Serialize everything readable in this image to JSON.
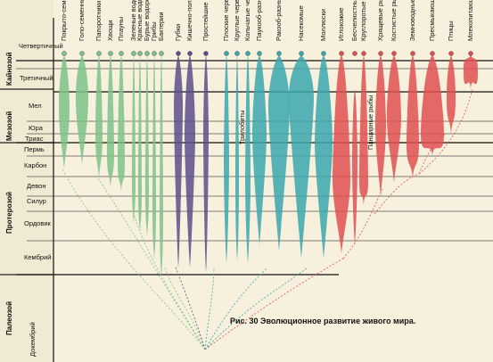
{
  "eras": [
    "Кайнозой",
    "Мезозой",
    "Протерозой",
    "Палеозой"
  ],
  "periods": [
    "Четвертичный",
    "Третичный",
    "Мел",
    "Юра",
    "Триас",
    "Пермь",
    "Карбон",
    "Девон",
    "Силур",
    "Ордовик",
    "Кембрий",
    "Докембрий"
  ],
  "groups": [
    {
      "label": "Покрыто-семенные",
      "color": "#7cc38a"
    },
    {
      "label": "Голо-семенные",
      "color": "#7cc38a"
    },
    {
      "label": "Папоротники",
      "color": "#7cc38a"
    },
    {
      "label": "Хвощи",
      "color": "#7cc38a"
    },
    {
      "label": "Плауны",
      "color": "#7cc38a"
    },
    {
      "label": "Зеленые водоросли",
      "color": "#7cc38a"
    },
    {
      "label": "Красные водоросли",
      "color": "#7cc38a"
    },
    {
      "label": "Бурые водоросли",
      "color": "#7cc38a"
    },
    {
      "label": "Грибы",
      "color": "#7cc38a"
    },
    {
      "label": "Бактерии",
      "color": "#7cc38a"
    },
    {
      "label": "Губки",
      "color": "#5a4f8a"
    },
    {
      "label": "Кишечно-полостные",
      "color": "#5a4f8a"
    },
    {
      "label": "Простейшие",
      "color": "#5a4f8a"
    },
    {
      "label": "Плоские черви",
      "color": "#3aa7ad"
    },
    {
      "label": "Круглые черви",
      "color": "#3aa7ad"
    },
    {
      "label": "Кольчатые черви",
      "color": "#3aa7ad"
    },
    {
      "label": "Паукооб-разные",
      "color": "#3aa7ad"
    },
    {
      "label": "Ракооб-разные",
      "color": "#3aa7ad"
    },
    {
      "label": "Насекомые",
      "color": "#3aa7ad"
    },
    {
      "label": "Моллюски",
      "color": "#3aa7ad"
    },
    {
      "label": "Иглокожие",
      "color": "#e05050"
    },
    {
      "label": "Бесчелюстные",
      "color": "#e05050"
    },
    {
      "label": "Круглоротые",
      "color": "#e05050"
    },
    {
      "label": "Хрящевые рыбы",
      "color": "#e05050"
    },
    {
      "label": "Костистые рыбы",
      "color": "#e05050"
    },
    {
      "label": "Земноводные",
      "color": "#e05050"
    },
    {
      "label": "Пресмыкающиеся",
      "color": "#e05050"
    },
    {
      "label": "Птицы",
      "color": "#e05050"
    },
    {
      "label": "Млекопитающие",
      "color": "#e05050"
    }
  ],
  "annotations": {
    "trilobites": "Трилобиты",
    "armored_fish": "Панцирные рыбы"
  },
  "caption": "Рис. 30 Эволюционное развитие живого мира."
}
